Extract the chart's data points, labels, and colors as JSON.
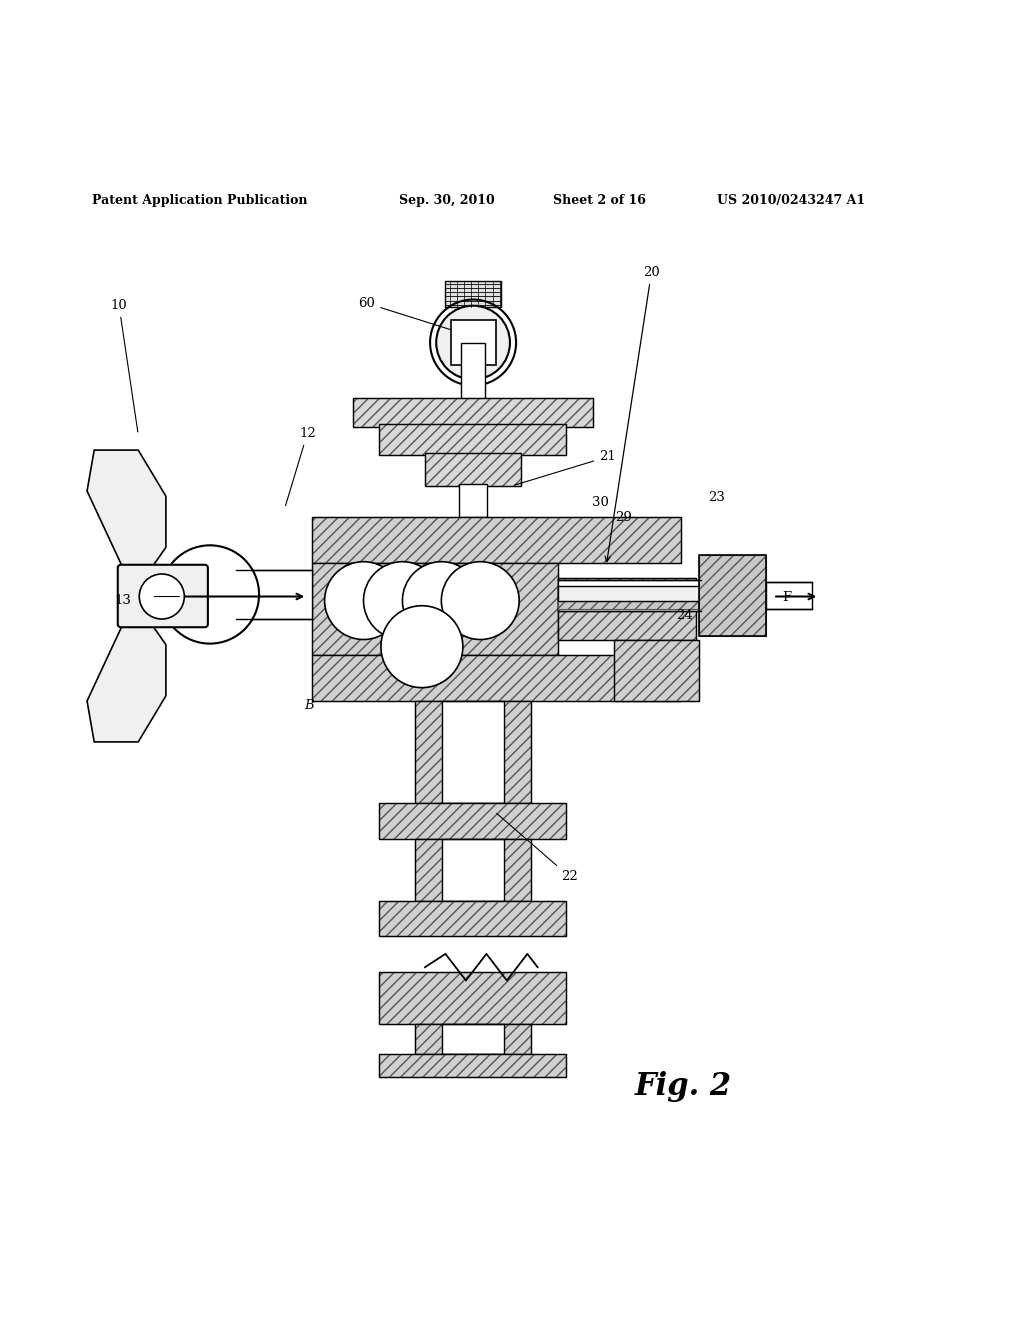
{
  "bg_color": "#ffffff",
  "header_text": "Patent Application Publication",
  "header_date": "Sep. 30, 2010",
  "header_sheet": "Sheet 2 of 16",
  "header_patent": "US 2010/0243247 A1",
  "fig_label": "Fig. 2",
  "hatch_color": "#555555",
  "line_color": "#000000"
}
